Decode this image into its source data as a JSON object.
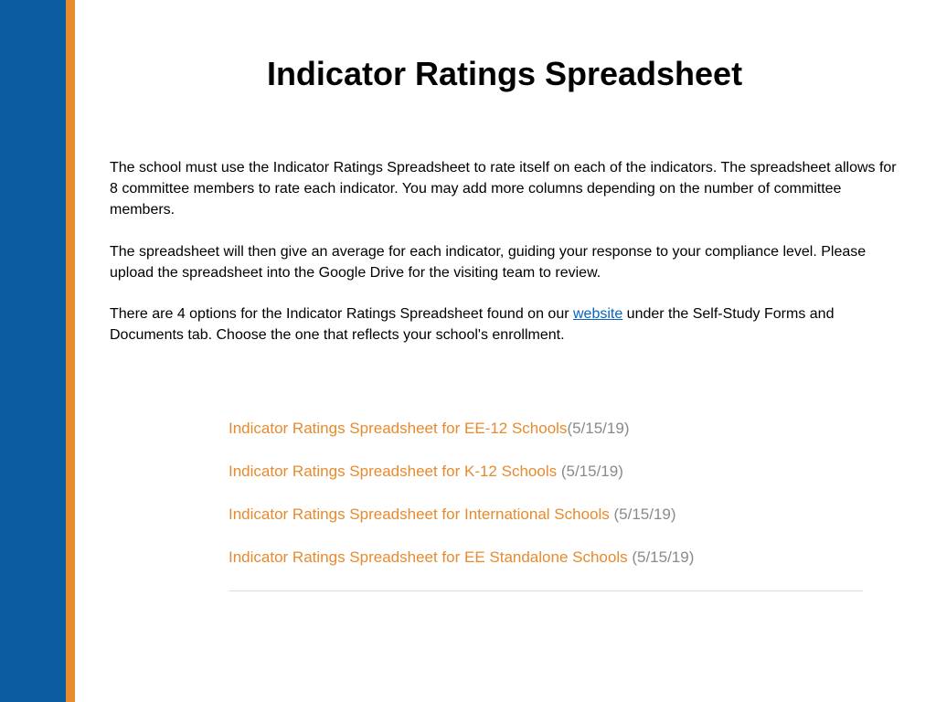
{
  "colors": {
    "sidebar_blue": "#0b5ba0",
    "sidebar_orange": "#e78a2e",
    "body_text": "#000000",
    "link_text": "#0563c1",
    "option_text": "#e78a2e",
    "option_date": "#8a8a8a",
    "hr": "#dcdcdc",
    "background": "#ffffff"
  },
  "title": "Indicator Ratings Spreadsheet",
  "paragraphs": {
    "p1": "The school must use the Indicator Ratings Spreadsheet to rate itself on each of the indicators. The spreadsheet allows for 8 committee members to rate each indicator. You may add more columns depending on the number of committee members.",
    "p2": "The spreadsheet will then give an average for each indicator, guiding your response to your compliance level. Please upload the spreadsheet into the Google Drive for the visiting team to review.",
    "p3_before": "There are 4 options for the Indicator Ratings Spreadsheet found on our ",
    "p3_link": "website",
    "p3_after": " under the Self-Study Forms and Documents tab. Choose the one that reflects your school's enrollment."
  },
  "options": [
    {
      "label": "Indicator Ratings Spreadsheet for EE-12 Schools",
      "date": "(5/15/19)"
    },
    {
      "label": "Indicator Ratings Spreadsheet for K-12 Schools ",
      "date": "(5/15/19)"
    },
    {
      "label": "Indicator Ratings Spreadsheet for International Schools ",
      "date": "(5/15/19)"
    },
    {
      "label": "Indicator Ratings Spreadsheet for EE Standalone Schools ",
      "date": "(5/15/19)"
    }
  ]
}
